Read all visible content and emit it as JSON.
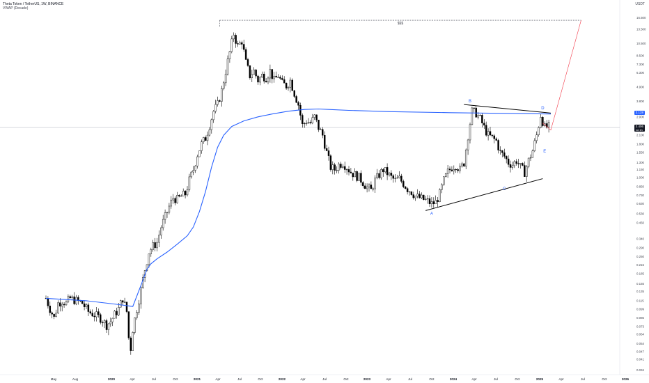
{
  "header": {
    "title": "Theta Token / TetherUS, 1W, BINANCE",
    "indicator": "VWAP (Decade)"
  },
  "currency": "USDT",
  "chart_data": {
    "type": "candlestick",
    "y_scale": "log",
    "ylim": [
      0.033,
      19.0
    ],
    "y_ticks": [
      "16.500",
      "13.500",
      "10.500",
      "8.500",
      "7.300",
      "6.300",
      "4.900",
      "3.800",
      "2.900",
      "2.100",
      "1.800",
      "1.550",
      "1.300",
      "1.150",
      "1.000",
      "0.850",
      "0.730",
      "0.630",
      "0.530",
      "0.450",
      "0.340",
      "0.290",
      "0.250",
      "0.215",
      "0.185",
      "0.155",
      "0.135",
      "0.115",
      "0.099",
      "0.085",
      "0.073",
      "0.064",
      "0.054",
      "0.047",
      "0.041",
      "0.034"
    ],
    "x_ticks": [
      "May",
      "Aug",
      "2020",
      "Apr",
      "Jul",
      "Oct",
      "2021",
      "Apr",
      "Jul",
      "Oct",
      "2022",
      "Apr",
      "Jul",
      "Oct",
      "2023",
      "Apr",
      "Jul",
      "Oct",
      "2024",
      "Apr",
      "Jul",
      "Oct",
      "2025",
      "Apr",
      "Jul",
      "Oct",
      "2026"
    ],
    "price_path": [
      [
        0,
        0.12
      ],
      [
        2,
        0.1
      ],
      [
        4,
        0.085
      ],
      [
        6,
        0.11
      ],
      [
        8,
        0.115
      ],
      [
        10,
        0.11
      ],
      [
        12,
        0.12
      ],
      [
        15,
        0.115
      ],
      [
        18,
        0.11
      ],
      [
        21,
        0.095
      ],
      [
        24,
        0.09
      ],
      [
        27,
        0.085
      ],
      [
        30,
        0.075
      ],
      [
        32,
        0.08
      ],
      [
        34,
        0.09
      ],
      [
        36,
        0.1
      ],
      [
        38,
        0.12
      ],
      [
        40,
        0.095
      ],
      [
        41,
        0.06
      ],
      [
        42,
        0.05
      ],
      [
        43,
        0.07
      ],
      [
        45,
        0.1
      ],
      [
        47,
        0.14
      ],
      [
        49,
        0.2
      ],
      [
        51,
        0.27
      ],
      [
        53,
        0.3
      ],
      [
        55,
        0.32
      ],
      [
        57,
        0.42
      ],
      [
        59,
        0.5
      ],
      [
        61,
        0.6
      ],
      [
        63,
        0.7
      ],
      [
        65,
        0.68
      ],
      [
        67,
        0.72
      ],
      [
        69,
        0.75
      ],
      [
        71,
        0.95
      ],
      [
        73,
        1.15
      ],
      [
        75,
        1.5
      ],
      [
        77,
        1.8
      ],
      [
        79,
        2.0
      ],
      [
        81,
        2.5
      ],
      [
        83,
        3.2
      ],
      [
        85,
        3.6
      ],
      [
        87,
        4.6
      ],
      [
        89,
        6.5
      ],
      [
        91,
        9.0
      ],
      [
        93,
        12.5
      ],
      [
        95,
        10.0
      ],
      [
        97,
        11.0
      ],
      [
        99,
        7.5
      ],
      [
        101,
        6.0
      ],
      [
        103,
        6.5
      ],
      [
        105,
        5.5
      ],
      [
        107,
        6.0
      ],
      [
        109,
        5.8
      ],
      [
        111,
        6.5
      ],
      [
        113,
        5.5
      ],
      [
        115,
        6.0
      ],
      [
        117,
        5.2
      ],
      [
        119,
        5.0
      ],
      [
        121,
        5.5
      ],
      [
        123,
        4.4
      ],
      [
        125,
        3.6
      ],
      [
        127,
        2.5
      ],
      [
        129,
        2.7
      ],
      [
        131,
        2.6
      ],
      [
        133,
        2.9
      ],
      [
        135,
        2.4
      ],
      [
        137,
        2.1
      ],
      [
        139,
        1.55
      ],
      [
        141,
        1.2
      ],
      [
        143,
        1.15
      ],
      [
        145,
        1.25
      ],
      [
        147,
        1.3
      ],
      [
        149,
        1.2
      ],
      [
        151,
        1.1
      ],
      [
        153,
        1.05
      ],
      [
        155,
        1.0
      ],
      [
        157,
        0.92
      ],
      [
        159,
        0.84
      ],
      [
        161,
        0.8
      ],
      [
        163,
        0.95
      ],
      [
        165,
        1.05
      ],
      [
        167,
        1.15
      ],
      [
        169,
        1.08
      ],
      [
        171,
        1.0
      ],
      [
        173,
        0.95
      ],
      [
        175,
        0.98
      ],
      [
        177,
        0.9
      ],
      [
        179,
        0.82
      ],
      [
        181,
        0.78
      ],
      [
        183,
        0.72
      ],
      [
        185,
        0.7
      ],
      [
        187,
        0.68
      ],
      [
        189,
        0.66
      ],
      [
        191,
        0.63
      ],
      [
        193,
        0.65
      ],
      [
        195,
        0.75
      ],
      [
        197,
        0.95
      ],
      [
        199,
        1.1
      ],
      [
        201,
        1.2
      ],
      [
        203,
        1.25
      ],
      [
        205,
        1.15
      ],
      [
        207,
        1.3
      ],
      [
        209,
        2.1
      ],
      [
        211,
        3.2
      ],
      [
        213,
        3.1
      ],
      [
        215,
        2.8
      ],
      [
        217,
        2.4
      ],
      [
        219,
        2.1
      ],
      [
        221,
        2.0
      ],
      [
        223,
        1.9
      ],
      [
        225,
        1.55
      ],
      [
        227,
        1.45
      ],
      [
        229,
        1.3
      ],
      [
        231,
        1.25
      ],
      [
        233,
        1.35
      ],
      [
        235,
        1.2
      ],
      [
        237,
        1.1
      ],
      [
        239,
        1.35
      ],
      [
        241,
        1.6
      ],
      [
        243,
        2.1
      ],
      [
        245,
        3.0
      ],
      [
        247,
        2.4
      ],
      [
        249,
        2.45
      ]
    ],
    "vwap_path": [
      [
        0,
        0.12
      ],
      [
        20,
        0.115
      ],
      [
        35,
        0.108
      ],
      [
        43,
        0.104
      ],
      [
        47,
        0.15
      ],
      [
        50,
        0.2
      ],
      [
        52,
        0.22
      ],
      [
        55,
        0.24
      ],
      [
        60,
        0.27
      ],
      [
        65,
        0.31
      ],
      [
        70,
        0.36
      ],
      [
        73,
        0.42
      ],
      [
        76,
        0.55
      ],
      [
        79,
        0.78
      ],
      [
        82,
        1.2
      ],
      [
        85,
        1.7
      ],
      [
        88,
        2.1
      ],
      [
        92,
        2.45
      ],
      [
        98,
        2.7
      ],
      [
        105,
        2.9
      ],
      [
        112,
        3.05
      ],
      [
        120,
        3.2
      ],
      [
        128,
        3.3
      ],
      [
        135,
        3.33
      ],
      [
        140,
        3.3
      ],
      [
        150,
        3.25
      ],
      [
        170,
        3.18
      ],
      [
        200,
        3.12
      ],
      [
        230,
        3.08
      ],
      [
        250,
        3.05
      ]
    ],
    "annotations": [
      {
        "label": "A",
        "x": 191,
        "y": 0.52
      },
      {
        "label": "B",
        "x": 210,
        "y": 3.75
      },
      {
        "label": "C",
        "x": 227,
        "y": 0.8
      },
      {
        "label": "D",
        "x": 246,
        "y": 3.3
      },
      {
        "label": "E",
        "x": 247,
        "y": 1.55
      }
    ],
    "target_box_label": "$$$",
    "trendlines": [
      {
        "from": [
          188,
          0.56
        ],
        "to": [
          246,
          0.98
        ],
        "color": "#000000"
      },
      {
        "from": [
          207,
          3.6
        ],
        "to": [
          250,
          3.1
        ],
        "color": "#000000"
      }
    ],
    "projection": {
      "from": [
        250,
        2.3
      ],
      "to": [
        265,
        15.8
      ],
      "color": "#f23645"
    },
    "last_price": "2.406",
    "last_price_sub": "1d 1h",
    "vwap_value": "3.128",
    "colors": {
      "candle": "#000000",
      "vwap": "#2962ff",
      "projection": "#f23645",
      "label": "#2962ff",
      "target": "#434651"
    }
  }
}
